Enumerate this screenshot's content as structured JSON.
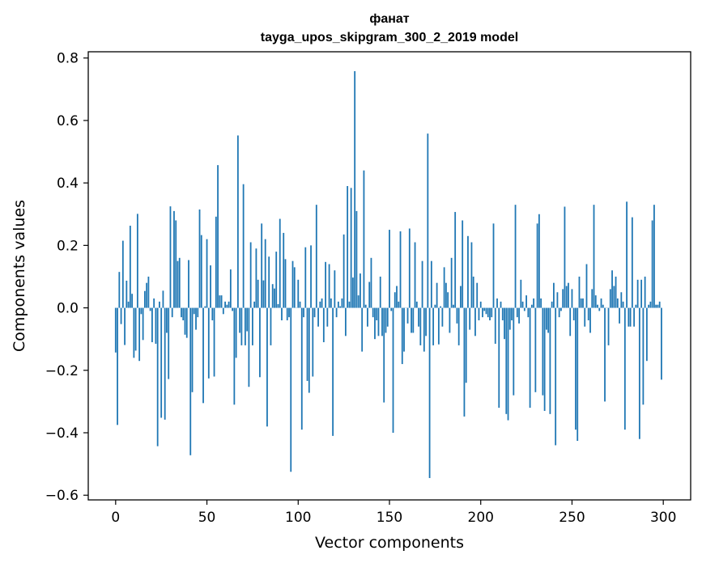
{
  "chart_data": {
    "type": "bar",
    "title": "фанат",
    "subtitle": "tayga_upos_skipgram_300_2_2019 model",
    "xlabel": "Vector components",
    "ylabel": "Components values",
    "xlim": [
      -15,
      315
    ],
    "ylim": [
      -0.615,
      0.82
    ],
    "xticks": [
      0,
      50,
      100,
      150,
      200,
      250,
      300
    ],
    "xtick_labels": [
      "0",
      "50",
      "100",
      "150",
      "200",
      "250",
      "300"
    ],
    "yticks": [
      -0.6,
      -0.4,
      -0.2,
      0.0,
      0.2,
      0.4,
      0.6,
      0.8
    ],
    "ytick_labels": [
      "−0.6",
      "−0.4",
      "−0.2",
      "0.0",
      "0.2",
      "0.4",
      "0.6",
      "0.8"
    ],
    "grid": false,
    "bar_color": "#1f77b4",
    "x": "index 0..299",
    "values": [
      -0.143,
      -0.375,
      0.115,
      -0.052,
      0.215,
      -0.119,
      0.087,
      0.02,
      0.263,
      0.045,
      -0.16,
      -0.137,
      0.301,
      -0.17,
      -0.02,
      -0.103,
      0.054,
      0.08,
      0.1,
      -0.01,
      -0.11,
      0.03,
      -0.115,
      -0.443,
      0.02,
      -0.352,
      0.055,
      -0.358,
      -0.08,
      -0.228,
      0.325,
      -0.03,
      0.31,
      0.28,
      0.15,
      0.16,
      -0.03,
      -0.04,
      -0.086,
      -0.096,
      0.153,
      -0.472,
      -0.27,
      -0.02,
      -0.07,
      -0.03,
      0.315,
      0.233,
      -0.305,
      0.005,
      0.22,
      -0.226,
      0.136,
      -0.04,
      -0.22,
      0.292,
      0.457,
      0.04,
      0.04,
      -0.02,
      0.02,
      0.01,
      0.02,
      0.123,
      -0.01,
      -0.31,
      -0.16,
      0.552,
      -0.08,
      -0.12,
      0.396,
      -0.12,
      -0.075,
      -0.253,
      0.21,
      -0.12,
      0.02,
      0.19,
      0.09,
      -0.222,
      0.27,
      0.088,
      0.22,
      -0.38,
      0.164,
      -0.12,
      0.076,
      0.062,
      0.18,
      0.012,
      0.285,
      -0.04,
      0.24,
      0.156,
      -0.04,
      -0.03,
      -0.525,
      0.15,
      0.13,
      0.0,
      0.09,
      0.02,
      -0.39,
      -0.03,
      0.194,
      -0.234,
      -0.272,
      0.2,
      -0.22,
      -0.03,
      0.33,
      -0.06,
      0.02,
      0.03,
      -0.11,
      0.147,
      -0.06,
      0.14,
      0.03,
      -0.41,
      0.12,
      -0.03,
      0.02,
      0.005,
      0.03,
      0.235,
      -0.09,
      0.39,
      0.02,
      0.384,
      0.097,
      0.758,
      0.31,
      0.04,
      0.11,
      -0.14,
      0.44,
      0.01,
      -0.06,
      0.083,
      0.16,
      -0.03,
      -0.1,
      -0.04,
      -0.09,
      0.1,
      -0.09,
      -0.303,
      -0.08,
      -0.06,
      0.25,
      -0.01,
      -0.4,
      0.05,
      0.07,
      0.02,
      0.245,
      -0.18,
      -0.14,
      0.0,
      -0.05,
      0.254,
      -0.08,
      -0.08,
      0.21,
      0.02,
      -0.06,
      -0.12,
      0.15,
      -0.14,
      -0.09,
      0.558,
      -0.545,
      0.15,
      -0.12,
      0.01,
      0.08,
      -0.117,
      0.005,
      -0.06,
      0.13,
      0.08,
      0.05,
      -0.08,
      0.16,
      0.01,
      0.307,
      -0.05,
      -0.12,
      0.07,
      0.28,
      -0.348,
      -0.24,
      0.23,
      -0.07,
      0.21,
      0.1,
      -0.09,
      0.08,
      -0.04,
      0.02,
      -0.03,
      -0.01,
      -0.02,
      -0.03,
      -0.04,
      -0.03,
      0.27,
      -0.115,
      0.03,
      -0.32,
      0.02,
      -0.04,
      -0.1,
      -0.34,
      -0.36,
      -0.07,
      -0.04,
      -0.28,
      0.33,
      -0.03,
      -0.05,
      0.09,
      0.02,
      -0.01,
      0.04,
      -0.03,
      -0.32,
      0.01,
      0.03,
      -0.27,
      0.27,
      0.3,
      0.03,
      -0.28,
      -0.33,
      -0.07,
      -0.08,
      -0.34,
      0.02,
      0.08,
      -0.44,
      0.05,
      -0.03,
      -0.01,
      0.06,
      0.324,
      0.07,
      0.08,
      -0.09,
      0.06,
      -0.04,
      -0.39,
      -0.426,
      0.1,
      0.03,
      0.03,
      -0.06,
      0.14,
      -0.04,
      -0.08,
      0.06,
      0.33,
      0.04,
      0.01,
      -0.01,
      0.03,
      0.01,
      -0.3,
      0.0,
      -0.12,
      0.06,
      0.12,
      0.07,
      0.1,
      0.03,
      -0.05,
      0.05,
      0.02,
      -0.39,
      0.34,
      -0.06,
      -0.06,
      0.29,
      -0.06,
      0.01,
      0.09,
      -0.42,
      0.09,
      -0.31,
      0.1,
      -0.17,
      0.01,
      0.02,
      0.28,
      0.33,
      0.01,
      0.01,
      0.02,
      -0.23
    ]
  }
}
